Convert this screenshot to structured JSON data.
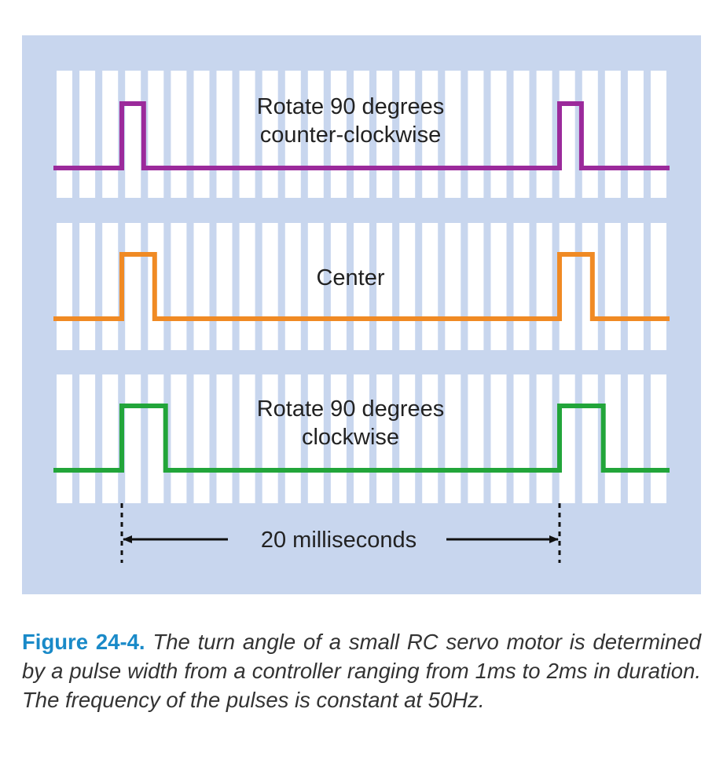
{
  "figure": {
    "background_color": "#c8d6ee",
    "stripe_color": "#ffffff",
    "waveforms": [
      {
        "label_lines": [
          "Rotate 90 degrees",
          "counter-clockwise"
        ],
        "color": "#9b2a9b",
        "pulse_width_ms": 1
      },
      {
        "label_lines": [
          "Center"
        ],
        "color": "#f08a24",
        "pulse_width_ms": 1.5
      },
      {
        "label_lines": [
          "Rotate 90 degrees",
          "clockwise"
        ],
        "color": "#22a53a",
        "pulse_width_ms": 2
      }
    ],
    "period_label": "20 milliseconds",
    "period_ms": 20
  },
  "caption": {
    "label": "Figure 24-4.",
    "text": " The turn angle of a small RC servo motor is determined by a pulse width from a controller ranging from 1ms to 2ms in duration. The frequency of the pulses is constant at 50Hz.",
    "label_color": "#1a8ac8"
  }
}
